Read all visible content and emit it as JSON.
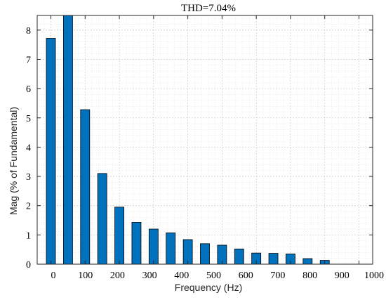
{
  "chart_data": {
    "type": "bar",
    "title": "THD=7.04%",
    "xlabel": "Frequency (Hz)",
    "ylabel": "Mag (% of Fundamental)",
    "x": [
      0,
      50,
      100,
      150,
      200,
      250,
      300,
      350,
      400,
      450,
      500,
      550,
      600,
      650,
      700,
      750,
      800,
      850
    ],
    "values": [
      7.72,
      8.6,
      5.28,
      3.1,
      1.95,
      1.43,
      1.2,
      1.07,
      0.84,
      0.7,
      0.65,
      0.52,
      0.38,
      0.37,
      0.35,
      0.19,
      0.13,
      0.0
    ],
    "xlim": [
      -40,
      940
    ],
    "ylim": [
      0,
      8.5
    ],
    "xticks": [
      0,
      100,
      200,
      300,
      400,
      500,
      600,
      700,
      800,
      900,
      1000
    ],
    "xtick_labels": [
      "0",
      "100",
      "200",
      "300",
      "400",
      "500",
      "600",
      "700",
      "800",
      "900",
      "1000"
    ],
    "yticks": [
      0,
      1,
      2,
      3,
      4,
      5,
      6,
      7,
      8
    ],
    "ytick_labels": [
      "0",
      "1",
      "2",
      "3",
      "4",
      "5",
      "6",
      "7",
      "8"
    ],
    "grid": true,
    "minor_grid": true,
    "bar_color": "#0072BD",
    "bar_edge_color": "#000000"
  }
}
